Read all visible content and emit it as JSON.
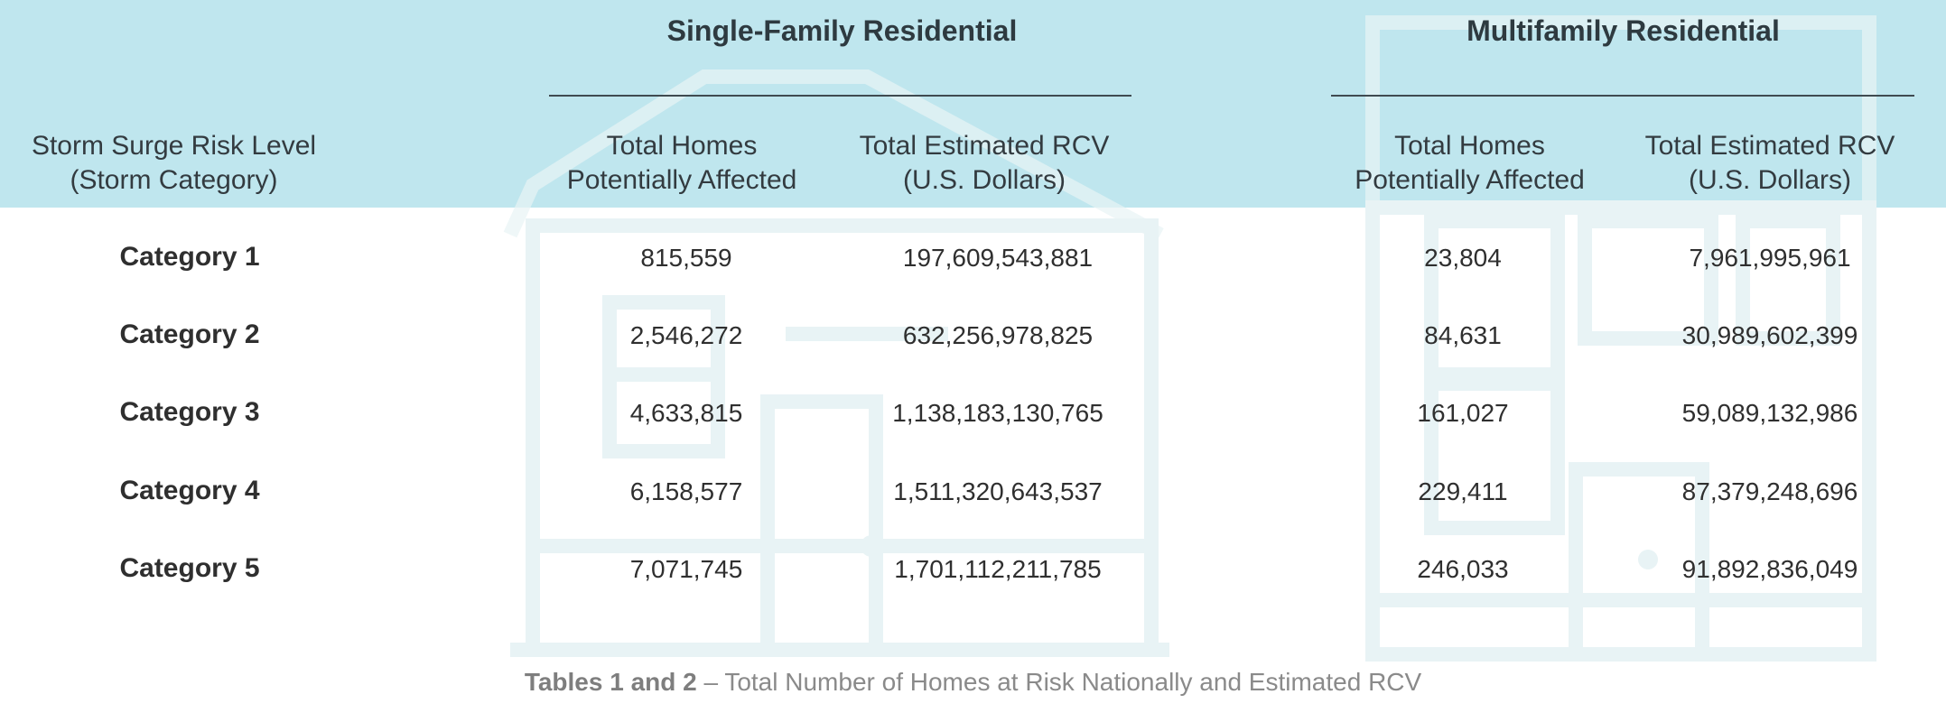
{
  "chart_data": {
    "type": "table",
    "row_header": "Storm Surge Risk Level\n(Storm Category)",
    "groups": [
      {
        "title": "Single-Family Residential",
        "columns": [
          "Total Homes\nPotentially Affected",
          "Total Estimated RCV\n(U.S. Dollars)"
        ]
      },
      {
        "title": "Multifamily Residential",
        "columns": [
          "Total Homes\nPotentially Affected",
          "Total Estimated RCV\n(U.S. Dollars)"
        ]
      }
    ],
    "rows": [
      {
        "label": "Category 1",
        "values": [
          "815,559",
          "197,609,543,881",
          "23,804",
          "7,961,995,961"
        ]
      },
      {
        "label": "Category 2",
        "values": [
          "2,546,272",
          "632,256,978,825",
          "84,631",
          "30,989,602,399"
        ]
      },
      {
        "label": "Category 3",
        "values": [
          "4,633,815",
          "1,138,183,130,765",
          "161,027",
          "59,089,132,986"
        ]
      },
      {
        "label": "Category 4",
        "values": [
          "6,158,577",
          "1,511,320,643,537",
          "229,411",
          "87,379,248,696"
        ]
      },
      {
        "label": "Category 5",
        "values": [
          "7,071,745",
          "1,701,112,211,785",
          "246,033",
          "91,892,836,049"
        ]
      }
    ]
  },
  "caption": {
    "bold": "Tables 1 and 2",
    "text": " – Total Number of Homes at Risk Nationally and Estimated RCV"
  },
  "colors": {
    "header_band": "#bfe6ee",
    "house_outline": "#eef6f7"
  },
  "decorations": [
    "single-family-house-illustration",
    "multifamily-house-illustration"
  ]
}
